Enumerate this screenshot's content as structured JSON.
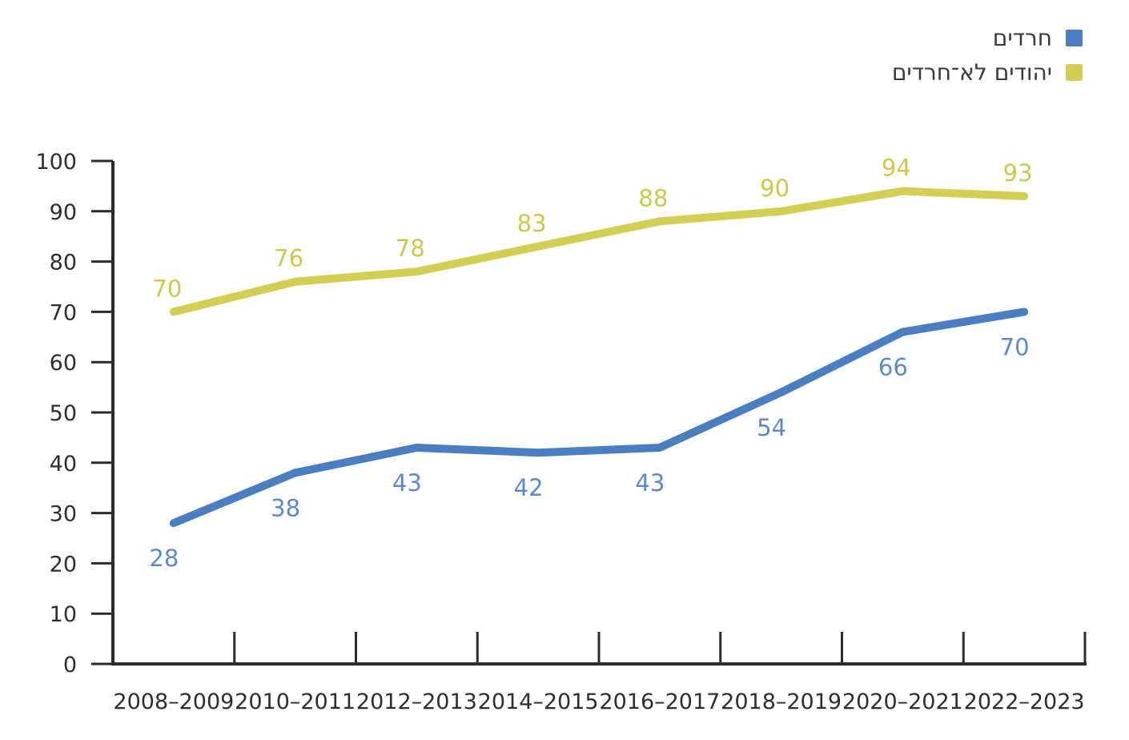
{
  "legend": {
    "items": [
      {
        "label": "חרדים",
        "color": "#4a7ec1"
      },
      {
        "label": "יהודים לא־חרדים",
        "color": "#d3cf54"
      }
    ]
  },
  "chart_data": {
    "type": "line",
    "title": "",
    "categories": [
      "2008–2009",
      "2010–2011",
      "2012–2013",
      "2014–2015",
      "2016–2017",
      "2018–2019",
      "2020–2021",
      "2022–2023"
    ],
    "series": [
      {
        "name": "חרדים",
        "color": "#4a7ec1",
        "label_color": "#5d89c7",
        "values": [
          28,
          38,
          43,
          42,
          43,
          54,
          66,
          70
        ],
        "data_label_position": "below"
      },
      {
        "name": "יהודים לא־חרדים",
        "color": "#d3cf54",
        "label_color": "#ccc84e",
        "values": [
          70,
          76,
          78,
          83,
          88,
          90,
          94,
          93
        ],
        "data_label_position": "above"
      }
    ],
    "ylim": [
      0,
      100
    ],
    "ytick_interval": 10,
    "ytick_labels": [
      "0",
      "10",
      "20",
      "30",
      "40",
      "50",
      "60",
      "70",
      "80",
      "90",
      "100"
    ],
    "grid": false,
    "legend_position": "top-right",
    "axis_color": "#2b2b2b",
    "tick_label_color": "#2e2e2e",
    "background": "#ffffff"
  }
}
